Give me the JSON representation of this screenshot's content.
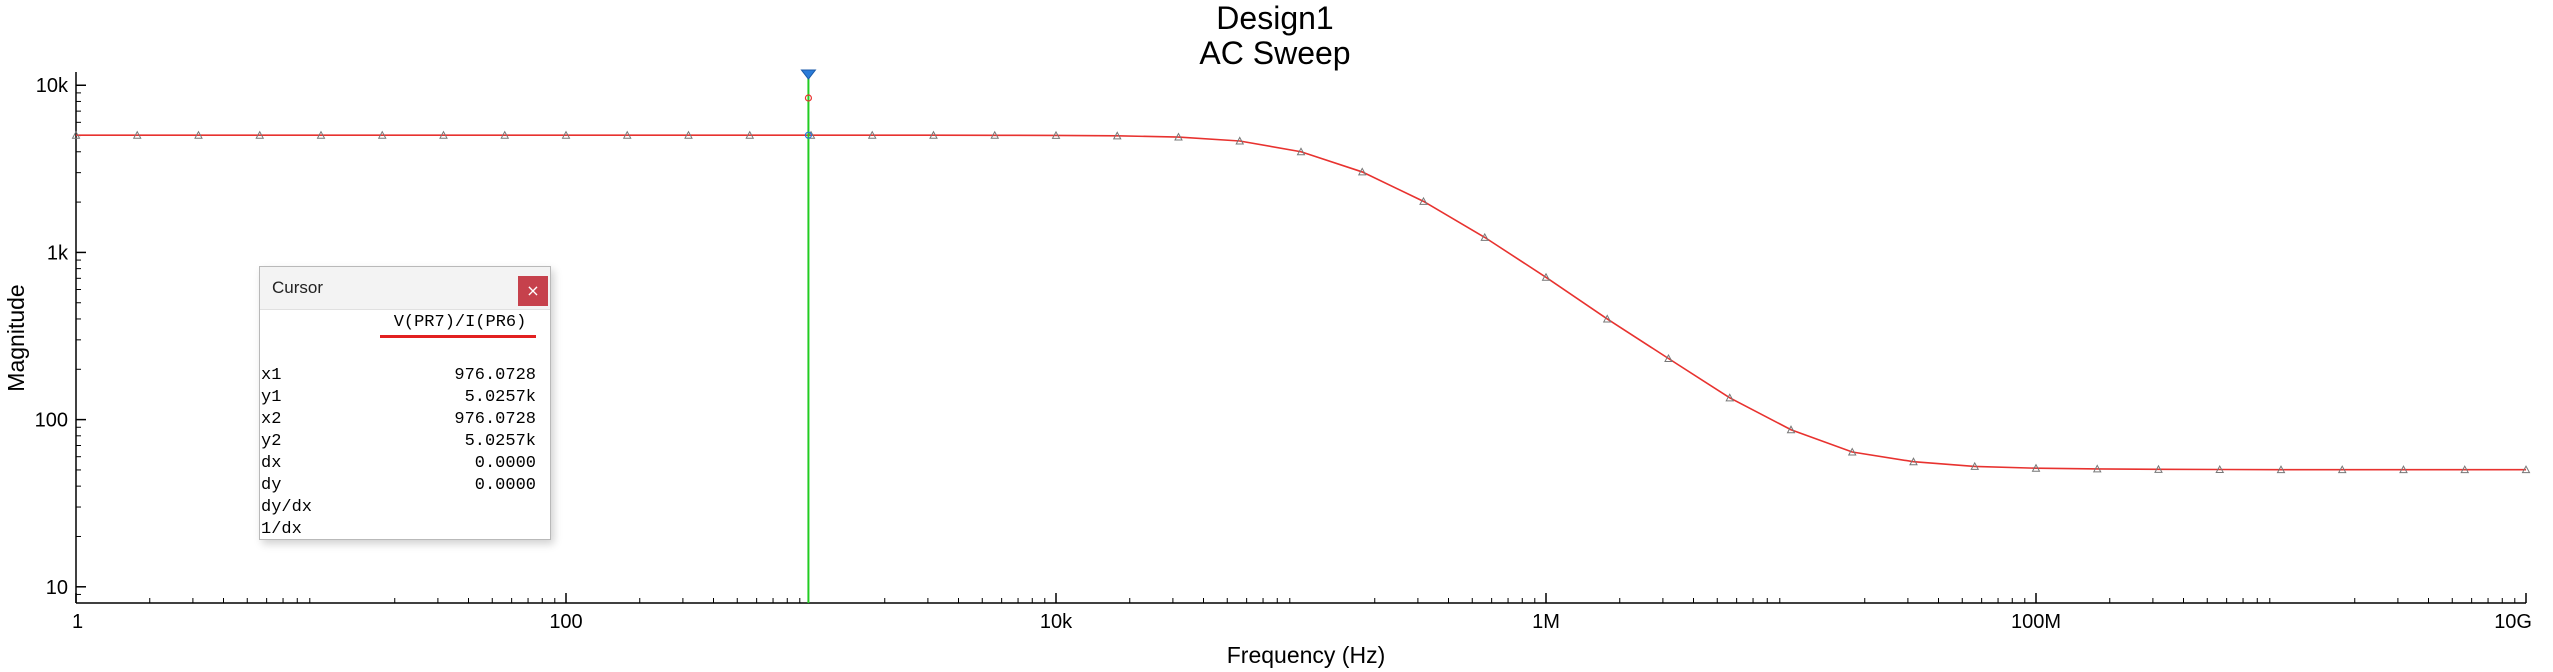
{
  "chart_data": {
    "type": "line",
    "title": "Design1",
    "subtitle": "AC Sweep",
    "xlabel": "Frequency (Hz)",
    "ylabel": "Magnitude",
    "xscale": "log",
    "yscale": "log",
    "xlim": [
      1,
      10000000000
    ],
    "ylim": [
      8,
      12000
    ],
    "x_ticks": [
      {
        "value": 1,
        "label": "1"
      },
      {
        "value": 100,
        "label": "100"
      },
      {
        "value": 10000,
        "label": "10k"
      },
      {
        "value": 1000000,
        "label": "1M"
      },
      {
        "value": 100000000,
        "label": "100M"
      },
      {
        "value": 10000000000,
        "label": "10G"
      }
    ],
    "y_ticks": [
      {
        "value": 10,
        "label": "10"
      },
      {
        "value": 100,
        "label": "100"
      },
      {
        "value": 1000,
        "label": "1k"
      },
      {
        "value": 10000,
        "label": "10k"
      }
    ],
    "grid": false,
    "series": [
      {
        "color": "#e8322f",
        "marker": "triangle",
        "x": [
          1,
          1.778,
          3.162,
          5.623,
          10,
          17.78,
          31.62,
          56.23,
          100,
          177.8,
          316.2,
          562.3,
          1000,
          1778,
          3162,
          5623,
          10000,
          17780,
          31620,
          56230,
          100000,
          177800,
          316200,
          562300,
          1000000,
          1778000,
          3162000,
          5623000,
          10000000,
          17780000,
          31620000,
          56230000,
          100000000,
          177800000,
          316200000,
          562300000,
          1000000000,
          1778000000,
          3162000000,
          5623000000,
          10000000000
        ],
        "y": [
          5026,
          5026,
          5026,
          5026,
          5026,
          5026,
          5026,
          5026,
          5026,
          5026,
          5026,
          5026,
          5026,
          5025,
          5024,
          5020,
          5010,
          4980,
          4900,
          4640,
          4000,
          3030,
          2020,
          1230,
          710,
          400,
          232,
          135,
          87,
          64,
          56,
          52.5,
          51.2,
          50.7,
          50.4,
          50.3,
          50.2,
          50.2,
          50.2,
          50.2,
          50.2
        ]
      }
    ],
    "cursor": {
      "x": 976.0728,
      "y": 5025.7,
      "color": "#22cc22"
    }
  },
  "cursor_panel": {
    "title": "Cursor",
    "close_label": "×",
    "trace": "V(PR7)/I(PR6)",
    "rows": [
      {
        "label": "x1",
        "value": "976.0728"
      },
      {
        "label": "y1",
        "value": "5.0257k"
      },
      {
        "label": "x2",
        "value": "976.0728"
      },
      {
        "label": "y2",
        "value": "5.0257k"
      },
      {
        "label": "dx",
        "value": "0.0000"
      },
      {
        "label": "dy",
        "value": "0.0000"
      },
      {
        "label": "dy/dx",
        "value": ""
      },
      {
        "label": "1/dx",
        "value": ""
      }
    ]
  }
}
